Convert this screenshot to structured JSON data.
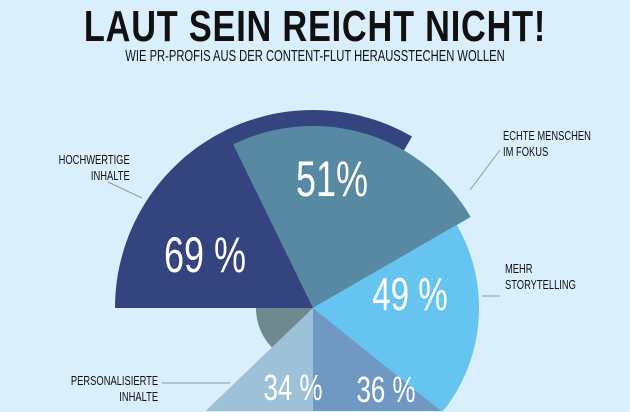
{
  "title": "LAUT SEIN REICHT NICHT!",
  "subtitle": "WIE PR-PROFIS AUS DER CONTENT-FLUT HERAUSSTECHEN WOLLEN",
  "chart_data": {
    "type": "polar-area",
    "title": "LAUT SEIN REICHT NICHT!",
    "subtitle": "WIE PR-PROFIS AUS DER CONTENT-FLUT HERAUSSTECHEN WOLLEN",
    "segments": [
      {
        "label_lines": [
          "HOCHWERTIGE",
          "INHALTE"
        ],
        "value": 69,
        "value_label": "69 %",
        "color": "#34447f"
      },
      {
        "label_lines": [
          "ECHTE MENSCHEN",
          "IM FOKUS"
        ],
        "value": 51,
        "value_label": "51%",
        "color": "#5889a3"
      },
      {
        "label_lines": [
          "MEHR",
          "STORYTELLING"
        ],
        "value": 49,
        "value_label": "49 %",
        "color": "#66c4f0"
      },
      {
        "label_lines": [],
        "value": 36,
        "value_label": "36 %",
        "color": "#6f98c3"
      },
      {
        "label_lines": [
          "PERSONALISIERTE",
          "INHALTE"
        ],
        "value": 34,
        "value_label": "34 %",
        "color": "#9dc2d8"
      },
      {
        "label_lines": [],
        "value": null,
        "value_label": "",
        "color": "#6f8a8e"
      }
    ]
  }
}
